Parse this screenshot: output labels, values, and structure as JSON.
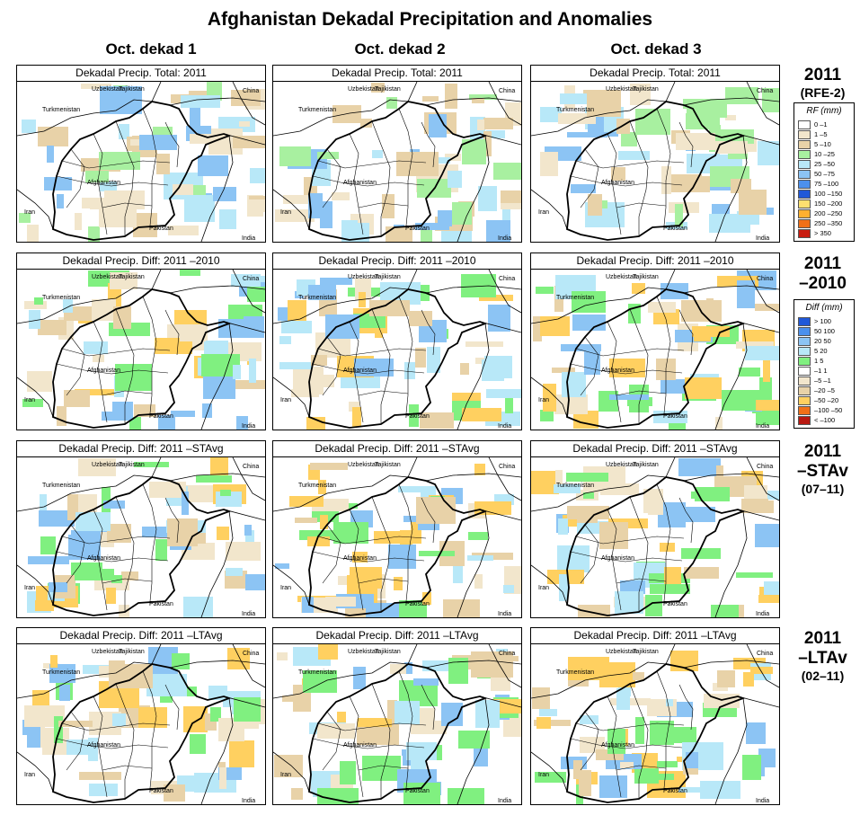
{
  "title": "Afghanistan Dekadal Precipitation and Anomalies",
  "columns": [
    "Oct. dekad 1",
    "Oct. dekad 2",
    "Oct. dekad 3"
  ],
  "rows": [
    {
      "label_line1": "2011",
      "label_line2": "(RFE-2)",
      "panel_title": "Dekadal Precip. Total: 2011",
      "kind": "total"
    },
    {
      "label_line1": "2011",
      "label_line2": "–2010",
      "panel_title": "Dekadal Precip. Diff: 2011 –2010",
      "kind": "diff"
    },
    {
      "label_line1": "2011",
      "label_line2": "–STAv",
      "label_line3": "(07–11)",
      "panel_title": "Dekadal Precip. Diff: 2011 –STAvg",
      "kind": "diff"
    },
    {
      "label_line1": "2011",
      "label_line2": "–LTAv",
      "label_line3": "(02–11)",
      "panel_title": "Dekadal Precip. Diff: 2011 –LTAvg",
      "kind": "diff"
    }
  ],
  "country_labels": [
    "Uzbekistan",
    "Tajikistan",
    "China",
    "Turkmenistan",
    "Afghanistan",
    "Iran",
    "Pakistan",
    "India"
  ],
  "legend_rf": {
    "title": "RF (mm)",
    "items": [
      {
        "label": "0 –1",
        "color": "#ffffff"
      },
      {
        "label": "1 –5",
        "color": "#f2e6cc"
      },
      {
        "label": "5 –10",
        "color": "#e8d2a8"
      },
      {
        "label": "10 –25",
        "color": "#a8f0a0"
      },
      {
        "label": "25 –50",
        "color": "#b8e8f8"
      },
      {
        "label": "50 –75",
        "color": "#8cc4f4"
      },
      {
        "label": "75 –100",
        "color": "#4c90ec"
      },
      {
        "label": "100 –150",
        "color": "#2058d8"
      },
      {
        "label": "150 –200",
        "color": "#ffe070"
      },
      {
        "label": "200 –250",
        "color": "#ffb030"
      },
      {
        "label": "250 –350",
        "color": "#f07018"
      },
      {
        "label": "> 350",
        "color": "#c81c10"
      }
    ]
  },
  "legend_diff": {
    "title": "Diff (mm)",
    "items": [
      {
        "label": "> 100",
        "color": "#2058d8"
      },
      {
        "label": "50  100",
        "color": "#4c90ec"
      },
      {
        "label": "20  50",
        "color": "#8cc4f4"
      },
      {
        "label": "5  20",
        "color": "#b8e8f8"
      },
      {
        "label": "1  5",
        "color": "#80f080"
      },
      {
        "label": "–1  1",
        "color": "#ffffff"
      },
      {
        "label": "–5  –1",
        "color": "#f2e6cc"
      },
      {
        "label": "–20  –5",
        "color": "#e8d2a8"
      },
      {
        "label": "–50  –20",
        "color": "#ffd060"
      },
      {
        "label": "–100  –50",
        "color": "#f07018"
      },
      {
        "label": "< –100",
        "color": "#b81810"
      }
    ]
  }
}
